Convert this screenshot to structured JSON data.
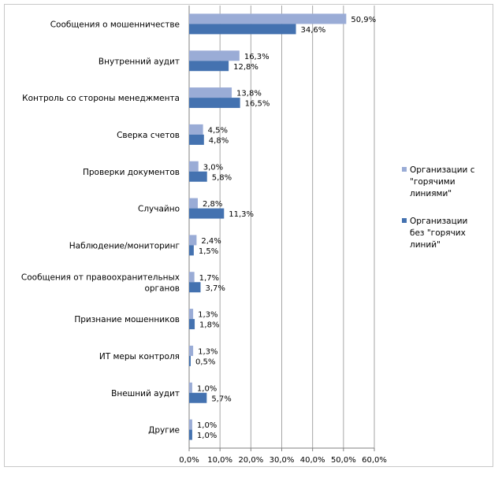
{
  "chart_data": {
    "type": "bar",
    "orientation": "horizontal",
    "categories": [
      "Сообщения о мошенничестве",
      "Внутренний аудит",
      "Контроль со стороны менеджмента",
      "Сверка счетов",
      "Проверки документов",
      "Случайно",
      "Наблюдение/мониторинг",
      "Сообщения от правоохранительных органов",
      "Признание мошенников",
      "ИТ меры контроля",
      "Внешний аудит",
      "Другие"
    ],
    "category_label_lines": [
      [
        "Сообщения о мошенничестве"
      ],
      [
        "Внутренний аудит"
      ],
      [
        "Контроль со стороны менеджмента"
      ],
      [
        "Сверка счетов"
      ],
      [
        "Проверки документов"
      ],
      [
        "Случайно"
      ],
      [
        "Наблюдение/мониторинг"
      ],
      [
        "Сообщения от правоохранительных",
        "органов"
      ],
      [
        "Признание мошенников"
      ],
      [
        "ИТ меры контроля"
      ],
      [
        "Внешний аудит"
      ],
      [
        "Другие"
      ]
    ],
    "series": [
      {
        "name": "Организации с \"горячими линиями\"",
        "legend_lines": [
          "Организации с",
          "\"горячими",
          "линиями\""
        ],
        "color": "#9aacd6",
        "values": [
          50.9,
          16.3,
          13.8,
          4.5,
          3.0,
          2.8,
          2.4,
          1.7,
          1.3,
          1.3,
          1.0,
          1.0
        ],
        "labels": [
          "50,9%",
          "16,3%",
          "13,8%",
          "4,5%",
          "3,0%",
          "2,8%",
          "2,4%",
          "1,7%",
          "1,3%",
          "1,3%",
          "1,0%",
          "1,0%"
        ]
      },
      {
        "name": "Организации без \"горячих линий\"",
        "legend_lines": [
          "Организации",
          "без \"горячих",
          "линий\""
        ],
        "color": "#4472b0",
        "values": [
          34.6,
          12.8,
          16.5,
          4.8,
          5.8,
          11.3,
          1.5,
          3.7,
          1.8,
          0.5,
          5.7,
          1.0
        ],
        "labels": [
          "34,6%",
          "12,8%",
          "16,5%",
          "4,8%",
          "5,8%",
          "11,3%",
          "1,5%",
          "3,7%",
          "1,8%",
          "0,5%",
          "5,7%",
          "1,0%"
        ]
      }
    ],
    "xlim": [
      0,
      60
    ],
    "x_ticks": [
      0,
      10,
      20,
      30,
      40,
      50,
      60
    ],
    "x_tick_labels": [
      "0,0%",
      "10,0%",
      "20,0%",
      "30,0%",
      "40,0%",
      "50,0%",
      "60,0%"
    ],
    "grid": true,
    "legend_position": "right",
    "title": "",
    "xlabel": "",
    "ylabel": ""
  }
}
